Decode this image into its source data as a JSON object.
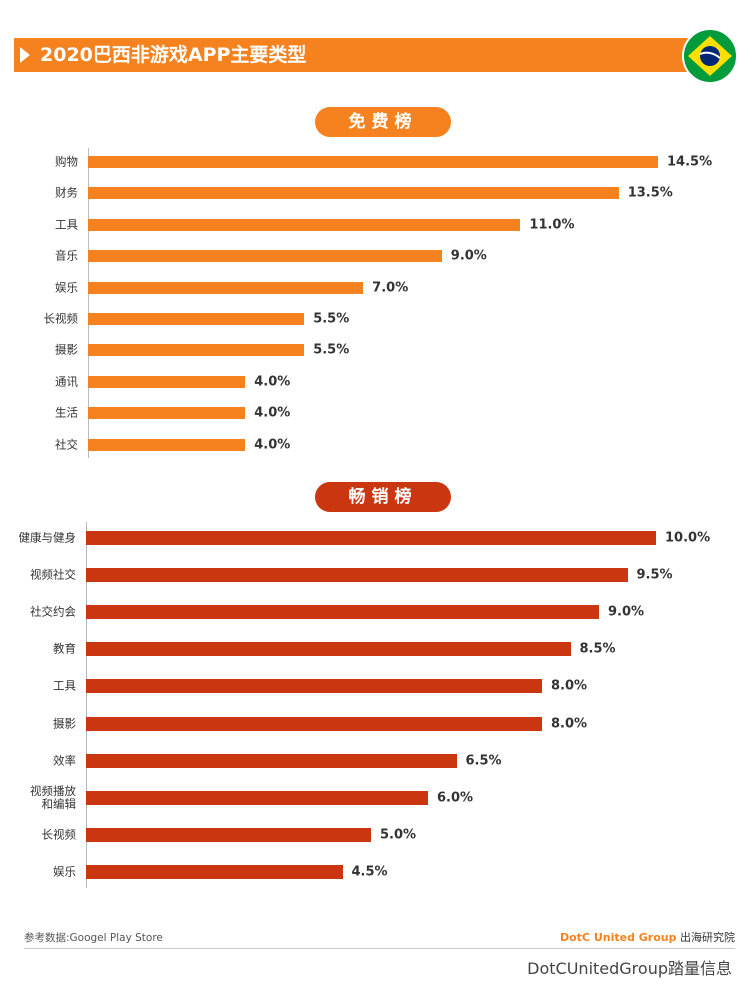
{
  "header": {
    "title": "2020巴西非游戏APP主要类型"
  },
  "chart_data": [
    {
      "type": "bar",
      "title": "免费榜",
      "categories": [
        "购物",
        "财务",
        "工具",
        "音乐",
        "娱乐",
        "长视频",
        "摄影",
        "通讯",
        "生活",
        "社交"
      ],
      "values": [
        14.5,
        13.5,
        11.0,
        9.0,
        7.0,
        5.5,
        5.5,
        4.0,
        4.0,
        4.0
      ],
      "value_labels": [
        "14.5%",
        "13.5%",
        "11.0%",
        "9.0%",
        "7.0%",
        "5.5%",
        "5.5%",
        "4.0%",
        "4.0%",
        "4.0%"
      ],
      "color": "#f5821f"
    },
    {
      "type": "bar",
      "title": "畅销榜",
      "categories": [
        "健康与健身",
        "视频社交",
        "社交约会",
        "教育",
        "工具",
        "摄影",
        "效率",
        "视频播放\n和编辑",
        "长视频",
        "娱乐"
      ],
      "values": [
        10.0,
        9.5,
        9.0,
        8.5,
        8.0,
        8.0,
        6.5,
        6.0,
        5.0,
        4.5
      ],
      "value_labels": [
        "10.0%",
        "9.5%",
        "9.0%",
        "8.5%",
        "8.0%",
        "8.0%",
        "6.5%",
        "6.0%",
        "5.0%",
        "4.5%"
      ],
      "color": "#c9360f"
    }
  ],
  "footer": {
    "source": "参考数据:Googel Play Store",
    "brand": "DotC United Group",
    "brand_suffix": "出海研究院",
    "watermark": "DotCUnitedGroup踏量信息"
  }
}
